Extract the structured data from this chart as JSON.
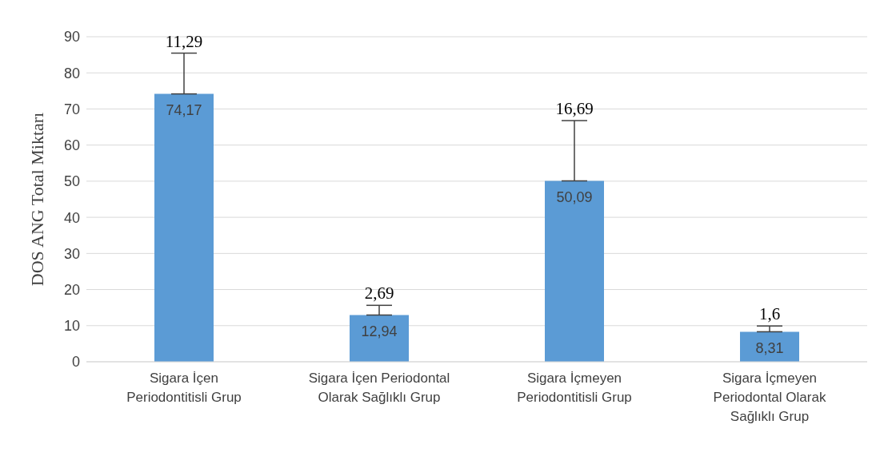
{
  "chart_data": {
    "type": "bar",
    "ylabel": "DOS ANG Total Miktarı",
    "categories": [
      "Sigara İçen Periodontitisli Grup",
      "Sigara İçen Periodontal Olarak Sağlıklı Grup",
      "Sigara İçmeyen Periodontitisli Grup",
      "Sigara İçmeyen Periodontal Olarak Sağlıklı Grup"
    ],
    "values": [
      74.17,
      12.94,
      50.09,
      8.31
    ],
    "value_labels": [
      "74,17",
      "12,94",
      "50,09",
      "8,31"
    ],
    "errors": [
      [
        74.17,
        85.46
      ],
      [
        12.94,
        15.63
      ],
      [
        50.09,
        66.78
      ],
      [
        8.31,
        9.91
      ]
    ],
    "color": "#5b9bd5",
    "annotations": [
      {
        "text": "11,29",
        "x": "Sigara İçen Periodontitisli Grup",
        "y": 85.46
      },
      {
        "text": "2,69",
        "x": "Sigara İçen Periodontal Olarak Sağlıklı Grup",
        "y": 15.63
      },
      {
        "text": "16,69",
        "x": "Sigara İçmeyen Periodontitisli Grup",
        "y": 66.78
      },
      {
        "text": "1,6",
        "x": "Sigara İçmeyen Periodontal Olarak Sağlıklı Grup",
        "y": 9.91
      }
    ],
    "ylim": [
      0,
      90
    ],
    "yticks": [
      0,
      10,
      20,
      30,
      40,
      50,
      60,
      70,
      80,
      90
    ],
    "grid": "y",
    "legend": false
  }
}
